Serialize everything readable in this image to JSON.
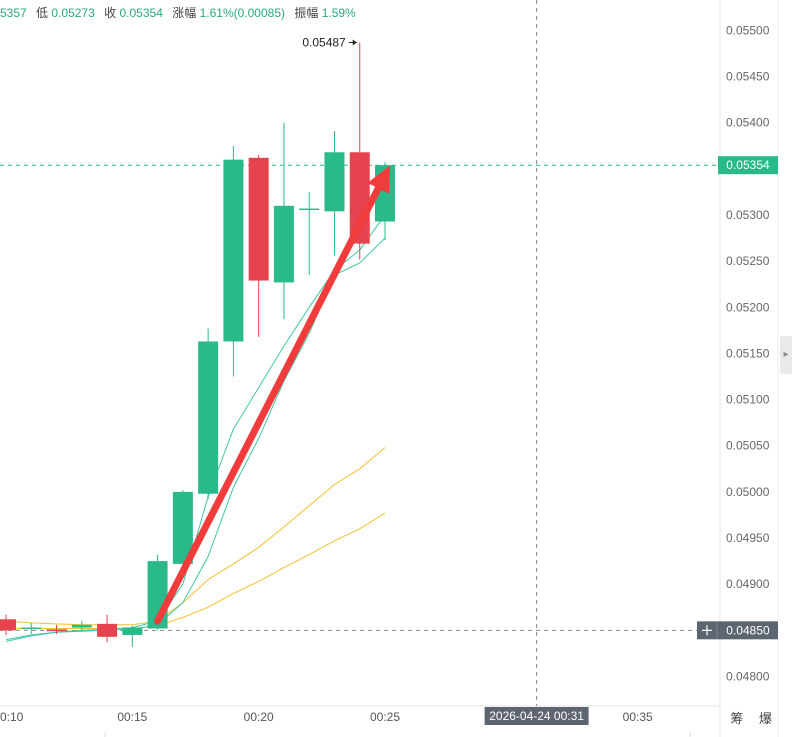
{
  "header": {
    "high_fragment": "5357",
    "low_label": "低",
    "low_value": "0.05273",
    "close_label": "收",
    "close_value": "0.05354",
    "change_label": "涨幅",
    "change_value": "1.61%(0.00085)",
    "amplitude_label": "振幅",
    "amplitude_value": "1.59%"
  },
  "bottom_chars": "筹 爆",
  "crosshair": {
    "time_label": "2026-04-24 00:31",
    "price_label": "0.04850",
    "price": 0.0485
  },
  "current_price_label": "0.05354",
  "high_annotation": "0.05487",
  "colors": {
    "up": "#2ab98a",
    "down": "#e5434d",
    "ma_short": "#3cc7a6",
    "ma_long": "#f2c12e",
    "arrow": "#f23b3b",
    "price_tag": "#2ab98a",
    "crosshair_tag": "#5c6570"
  },
  "chart_data": {
    "type": "candlestick",
    "y_ticks": [
      "0.04800",
      "0.04850",
      "0.04900",
      "0.04950",
      "0.05000",
      "0.05050",
      "0.05100",
      "0.05150",
      "0.05200",
      "0.05250",
      "0.05300",
      "0.05350",
      "0.05400",
      "0.05450",
      "0.05500"
    ],
    "x_ticks": [
      {
        "label": "0:10",
        "minute": 10
      },
      {
        "label": "00:15",
        "minute": 15
      },
      {
        "label": "00:20",
        "minute": 20
      },
      {
        "label": "00:25",
        "minute": 25
      },
      {
        "label": "00:35",
        "minute": 35
      }
    ],
    "ylim": [
      0.04768,
      0.05533
    ],
    "xlim": [
      10,
      37.15
    ],
    "candles": [
      {
        "t": 10,
        "o": 0.04862,
        "h": 0.04867,
        "l": 0.04845,
        "c": 0.0485
      },
      {
        "t": 11,
        "o": 0.04852,
        "h": 0.04858,
        "l": 0.04846,
        "c": 0.04853
      },
      {
        "t": 12,
        "o": 0.04851,
        "h": 0.04856,
        "l": 0.04846,
        "c": 0.04849
      },
      {
        "t": 13,
        "o": 0.04853,
        "h": 0.0486,
        "l": 0.04849,
        "c": 0.04856
      },
      {
        "t": 14,
        "o": 0.04857,
        "h": 0.04867,
        "l": 0.04837,
        "c": 0.04843
      },
      {
        "t": 15,
        "o": 0.04845,
        "h": 0.04855,
        "l": 0.04832,
        "c": 0.04853
      },
      {
        "t": 16,
        "o": 0.04852,
        "h": 0.04932,
        "l": 0.0485,
        "c": 0.04925
      },
      {
        "t": 17,
        "o": 0.04922,
        "h": 0.05002,
        "l": 0.04908,
        "c": 0.05
      },
      {
        "t": 18,
        "o": 0.04998,
        "h": 0.05177,
        "l": 0.04992,
        "c": 0.05163
      },
      {
        "t": 19,
        "o": 0.05163,
        "h": 0.05375,
        "l": 0.05125,
        "c": 0.0536
      },
      {
        "t": 20,
        "o": 0.05362,
        "h": 0.05365,
        "l": 0.05168,
        "c": 0.05229
      },
      {
        "t": 21,
        "o": 0.05227,
        "h": 0.054,
        "l": 0.05187,
        "c": 0.0531
      },
      {
        "t": 22,
        "o": 0.05307,
        "h": 0.05325,
        "l": 0.05235,
        "c": 0.05307
      },
      {
        "t": 23,
        "o": 0.05304,
        "h": 0.05391,
        "l": 0.05256,
        "c": 0.05368
      },
      {
        "t": 24,
        "o": 0.05368,
        "h": 0.05487,
        "l": 0.05252,
        "c": 0.05269
      },
      {
        "t": 25,
        "o": 0.05293,
        "h": 0.05357,
        "l": 0.05273,
        "c": 0.05354
      }
    ],
    "ma_short": [
      {
        "t": 10,
        "v": 0.04838
      },
      {
        "t": 11,
        "v": 0.04844
      },
      {
        "t": 12,
        "v": 0.04848
      },
      {
        "t": 13,
        "v": 0.0485
      },
      {
        "t": 14,
        "v": 0.04851
      },
      {
        "t": 15,
        "v": 0.04853
      },
      {
        "t": 16,
        "v": 0.0486
      },
      {
        "t": 17,
        "v": 0.049
      },
      {
        "t": 18,
        "v": 0.04995
      },
      {
        "t": 19,
        "v": 0.05068
      },
      {
        "t": 20,
        "v": 0.05113
      },
      {
        "t": 21,
        "v": 0.05158
      },
      {
        "t": 22,
        "v": 0.052
      },
      {
        "t": 23,
        "v": 0.0524
      },
      {
        "t": 24,
        "v": 0.05262
      },
      {
        "t": 25,
        "v": 0.053
      }
    ],
    "ma_short_2": [
      {
        "t": 10,
        "v": 0.0484
      },
      {
        "t": 11,
        "v": 0.04845
      },
      {
        "t": 12,
        "v": 0.04848
      },
      {
        "t": 13,
        "v": 0.04849
      },
      {
        "t": 14,
        "v": 0.0485
      },
      {
        "t": 15,
        "v": 0.04851
      },
      {
        "t": 16,
        "v": 0.04856
      },
      {
        "t": 17,
        "v": 0.0488
      },
      {
        "t": 18,
        "v": 0.0493
      },
      {
        "t": 19,
        "v": 0.05005
      },
      {
        "t": 20,
        "v": 0.05058
      },
      {
        "t": 21,
        "v": 0.0512
      },
      {
        "t": 22,
        "v": 0.05172
      },
      {
        "t": 23,
        "v": 0.05235
      },
      {
        "t": 24,
        "v": 0.05248
      },
      {
        "t": 25,
        "v": 0.05275
      }
    ],
    "ma_long": [
      {
        "t": 10,
        "v": 0.0486
      },
      {
        "t": 11,
        "v": 0.04858
      },
      {
        "t": 12,
        "v": 0.04857
      },
      {
        "t": 13,
        "v": 0.04856
      },
      {
        "t": 14,
        "v": 0.04856
      },
      {
        "t": 15,
        "v": 0.04856
      },
      {
        "t": 16,
        "v": 0.0486
      },
      {
        "t": 17,
        "v": 0.0488
      },
      {
        "t": 18,
        "v": 0.04905
      },
      {
        "t": 19,
        "v": 0.04922
      },
      {
        "t": 20,
        "v": 0.0494
      },
      {
        "t": 21,
        "v": 0.04962
      },
      {
        "t": 22,
        "v": 0.04985
      },
      {
        "t": 23,
        "v": 0.05008
      },
      {
        "t": 24,
        "v": 0.05025
      },
      {
        "t": 25,
        "v": 0.05048
      }
    ],
    "ma_long_2": [
      {
        "t": 10,
        "v": 0.04852
      },
      {
        "t": 11,
        "v": 0.04852
      },
      {
        "t": 12,
        "v": 0.04852
      },
      {
        "t": 13,
        "v": 0.04852
      },
      {
        "t": 14,
        "v": 0.04852
      },
      {
        "t": 15,
        "v": 0.04852
      },
      {
        "t": 16,
        "v": 0.04855
      },
      {
        "t": 17,
        "v": 0.04864
      },
      {
        "t": 18,
        "v": 0.04875
      },
      {
        "t": 19,
        "v": 0.0489
      },
      {
        "t": 20,
        "v": 0.04903
      },
      {
        "t": 21,
        "v": 0.04918
      },
      {
        "t": 22,
        "v": 0.04932
      },
      {
        "t": 23,
        "v": 0.04947
      },
      {
        "t": 24,
        "v": 0.0496
      },
      {
        "t": 25,
        "v": 0.04977
      }
    ],
    "arrow": {
      "from": {
        "t": 16.0,
        "v": 0.0486
      },
      "to": {
        "t": 25.2,
        "v": 0.05354
      }
    },
    "current_price": 0.05354,
    "crosshair_minute": 31.0
  }
}
